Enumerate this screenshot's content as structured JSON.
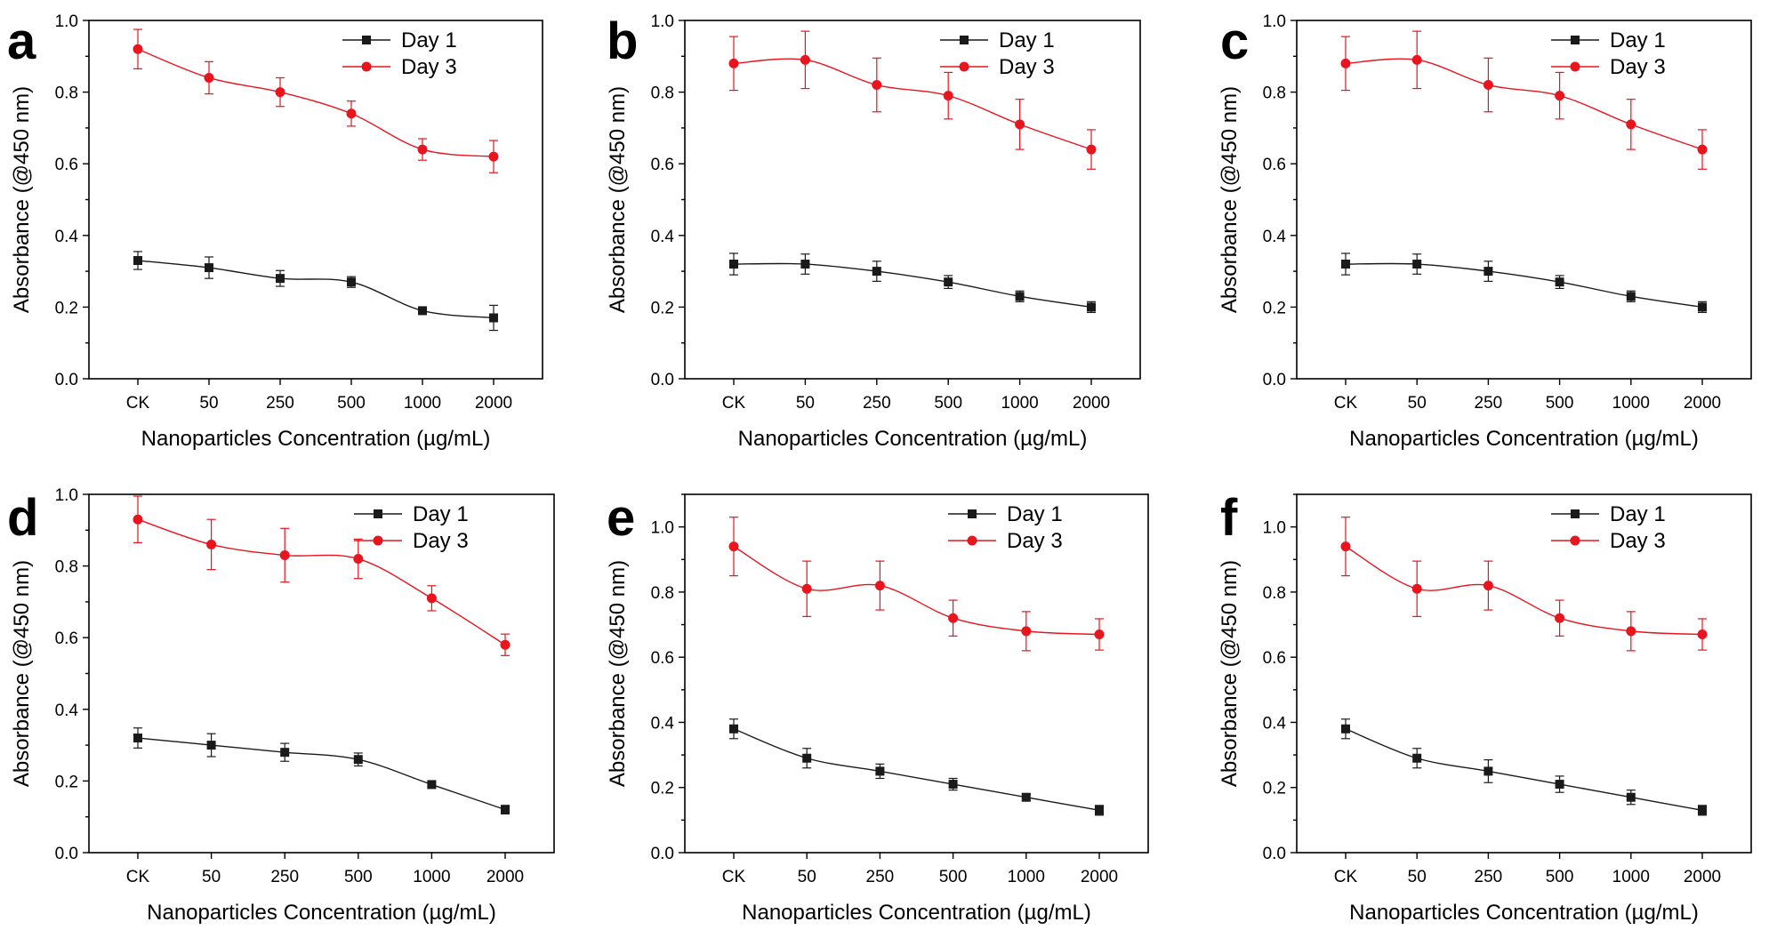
{
  "colors": {
    "day1": "#1a1a1a",
    "day3": "#e8141e",
    "axis": "#000000"
  },
  "chart_data": [
    {
      "panel": "a",
      "type": "line",
      "categories": [
        "CK",
        "50",
        "250",
        "500",
        "1000",
        "2000"
      ],
      "xlabel": "Nanoparticles Concentration (µg/mL)",
      "ylabel": "Absorbance (@450 nm)",
      "ylim": [
        0,
        1.0
      ],
      "yticks": [
        "0.0",
        "0.2",
        "0.4",
        "0.6",
        "0.8",
        "1.0"
      ],
      "legend_position": "top-right",
      "series": [
        {
          "name": "Day 1",
          "marker": "square",
          "values": [
            0.33,
            0.31,
            0.28,
            0.27,
            0.19,
            0.17
          ],
          "errors": [
            0.025,
            0.03,
            0.022,
            0.015,
            0.01,
            0.035
          ]
        },
        {
          "name": "Day 3",
          "marker": "circle",
          "values": [
            0.92,
            0.84,
            0.8,
            0.74,
            0.64,
            0.62
          ],
          "errors": [
            0.055,
            0.045,
            0.04,
            0.035,
            0.03,
            0.045
          ]
        }
      ]
    },
    {
      "panel": "b",
      "type": "line",
      "categories": [
        "CK",
        "50",
        "250",
        "500",
        "1000",
        "2000"
      ],
      "xlabel": "Nanoparticles Concentration (µg/mL)",
      "ylabel": "Absorbance (@450 nm)",
      "ylim": [
        0,
        1.0
      ],
      "yticks": [
        "0.0",
        "0.2",
        "0.4",
        "0.6",
        "0.8",
        "1.0"
      ],
      "legend_position": "top-right",
      "series": [
        {
          "name": "Day 1",
          "marker": "square",
          "values": [
            0.32,
            0.32,
            0.3,
            0.27,
            0.23,
            0.2
          ],
          "errors": [
            0.03,
            0.028,
            0.028,
            0.018,
            0.015,
            0.015
          ]
        },
        {
          "name": "Day 3",
          "marker": "circle",
          "values": [
            0.88,
            0.89,
            0.82,
            0.79,
            0.71,
            0.64
          ],
          "errors": [
            0.075,
            0.08,
            0.075,
            0.065,
            0.07,
            0.055
          ]
        }
      ]
    },
    {
      "panel": "c",
      "type": "line",
      "categories": [
        "CK",
        "50",
        "250",
        "500",
        "1000",
        "2000"
      ],
      "xlabel": "Nanoparticles Concentration (µg/mL)",
      "ylabel": "Absorbance (@450 nm)",
      "ylim": [
        0,
        1.0
      ],
      "yticks": [
        "0.0",
        "0.2",
        "0.4",
        "0.6",
        "0.8",
        "1.0"
      ],
      "legend_position": "top-right",
      "series": [
        {
          "name": "Day 1",
          "marker": "square",
          "values": [
            0.32,
            0.32,
            0.3,
            0.27,
            0.23,
            0.2
          ],
          "errors": [
            0.03,
            0.028,
            0.028,
            0.018,
            0.015,
            0.015
          ]
        },
        {
          "name": "Day 3",
          "marker": "circle",
          "values": [
            0.88,
            0.89,
            0.82,
            0.79,
            0.71,
            0.64
          ],
          "errors": [
            0.075,
            0.08,
            0.075,
            0.065,
            0.07,
            0.055
          ]
        }
      ]
    },
    {
      "panel": "d",
      "type": "line",
      "categories": [
        "CK",
        "50",
        "250",
        "500",
        "1000",
        "2000"
      ],
      "xlabel": "Nanoparticles Concentration (µg/mL)",
      "ylabel": "Absorbance (@450 nm)",
      "ylim": [
        0,
        1.0
      ],
      "yticks": [
        "0.0",
        "0.2",
        "0.4",
        "0.6",
        "0.8",
        "1.0"
      ],
      "legend_position": "top-right",
      "series": [
        {
          "name": "Day 1",
          "marker": "square",
          "values": [
            0.32,
            0.3,
            0.28,
            0.26,
            0.19,
            0.12
          ],
          "errors": [
            0.028,
            0.032,
            0.025,
            0.018,
            0.01,
            0.012
          ]
        },
        {
          "name": "Day 3",
          "marker": "circle",
          "values": [
            0.93,
            0.86,
            0.83,
            0.82,
            0.71,
            0.58
          ],
          "errors": [
            0.065,
            0.07,
            0.075,
            0.055,
            0.035,
            0.03
          ]
        }
      ]
    },
    {
      "panel": "e",
      "type": "line",
      "categories": [
        "CK",
        "50",
        "250",
        "500",
        "1000",
        "2000"
      ],
      "xlabel": "Nanoparticles Concentration (µg/mL)",
      "ylabel": "Absorbance (@450 nm)",
      "ylim": [
        0,
        1.1
      ],
      "yticks": [
        "0.0",
        "0.2",
        "0.4",
        "0.6",
        "0.8",
        "1.0"
      ],
      "legend_position": "top-right",
      "series": [
        {
          "name": "Day 1",
          "marker": "square",
          "values": [
            0.38,
            0.29,
            0.25,
            0.21,
            0.17,
            0.13
          ],
          "errors": [
            0.03,
            0.03,
            0.022,
            0.018,
            0.01,
            0.015
          ]
        },
        {
          "name": "Day 3",
          "marker": "circle",
          "values": [
            0.94,
            0.81,
            0.82,
            0.72,
            0.68,
            0.67
          ],
          "errors": [
            0.09,
            0.085,
            0.075,
            0.055,
            0.06,
            0.048
          ]
        }
      ]
    },
    {
      "panel": "f",
      "type": "line",
      "categories": [
        "CK",
        "50",
        "250",
        "500",
        "1000",
        "2000"
      ],
      "xlabel": "Nanoparticles Concentration (µg/mL)",
      "ylabel": "Absorbance (@450 nm)",
      "ylim": [
        0,
        1.1
      ],
      "yticks": [
        "0.0",
        "0.2",
        "0.4",
        "0.6",
        "0.8",
        "1.0"
      ],
      "legend_position": "top-right",
      "series": [
        {
          "name": "Day 1",
          "marker": "square",
          "values": [
            0.38,
            0.29,
            0.25,
            0.21,
            0.17,
            0.13
          ],
          "errors": [
            0.03,
            0.03,
            0.035,
            0.025,
            0.022,
            0.015
          ]
        },
        {
          "name": "Day 3",
          "marker": "circle",
          "values": [
            0.94,
            0.81,
            0.82,
            0.72,
            0.68,
            0.67
          ],
          "errors": [
            0.09,
            0.085,
            0.075,
            0.055,
            0.06,
            0.048
          ]
        }
      ]
    }
  ]
}
